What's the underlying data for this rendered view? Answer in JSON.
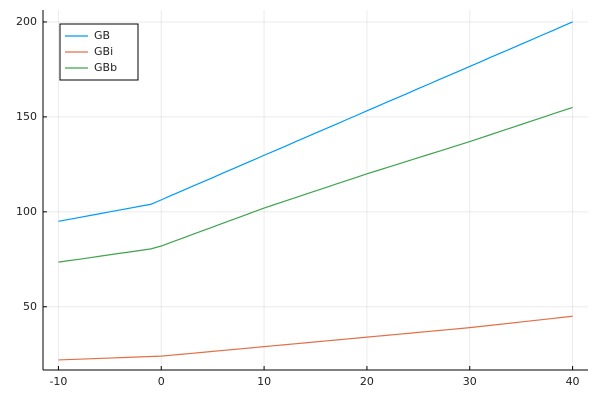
{
  "chart_data": {
    "type": "line",
    "x": [
      -10,
      -9,
      -8,
      -7,
      -6,
      -5,
      -4,
      -3,
      -2,
      -1,
      0,
      1,
      2,
      3,
      4,
      5,
      6,
      7,
      8,
      9,
      10,
      11,
      12,
      13,
      14,
      15,
      16,
      17,
      18,
      19,
      20,
      21,
      22,
      23,
      24,
      25,
      26,
      27,
      28,
      29,
      30,
      31,
      32,
      33,
      34,
      35,
      36,
      37,
      38,
      39,
      40
    ],
    "series": [
      {
        "name": "GB",
        "color": "#009af9",
        "values": [
          95,
          96,
          97,
          98,
          99,
          100,
          101,
          102,
          103,
          104,
          106.3,
          108.7,
          111.0,
          113.4,
          115.7,
          118.0,
          120.4,
          122.7,
          125.1,
          127.4,
          129.8,
          132.1,
          134.4,
          136.8,
          139.1,
          141.5,
          143.8,
          146.1,
          148.5,
          150.8,
          153.2,
          155.5,
          157.9,
          160.2,
          162.5,
          164.9,
          167.2,
          169.6,
          171.9,
          174.2,
          176.6,
          178.9,
          181.3,
          183.6,
          185.9,
          188.3,
          190.6,
          193.0,
          195.3,
          197.7,
          200
        ]
      },
      {
        "name": "GBi",
        "color": "#e26f46",
        "values": [
          22,
          22.2,
          22.4,
          22.6,
          22.8,
          23,
          23.2,
          23.4,
          23.6,
          23.8,
          24,
          24.5,
          25,
          25.5,
          26,
          26.5,
          27,
          27.5,
          28,
          28.5,
          29,
          29.5,
          30,
          30.5,
          31,
          31.5,
          32,
          32.5,
          33,
          33.5,
          34,
          34.5,
          35,
          35.5,
          36,
          36.5,
          37,
          37.5,
          38,
          38.5,
          39,
          39.6,
          40.2,
          40.8,
          41.4,
          42,
          42.6,
          43.2,
          43.8,
          44.4,
          45
        ]
      },
      {
        "name": "GBb",
        "color": "#3ea44e",
        "values": [
          73.5,
          74.3,
          75.0,
          75.8,
          76.6,
          77.4,
          78.2,
          78.9,
          79.7,
          80.5,
          82,
          84,
          86,
          88,
          90,
          92,
          94,
          96,
          98,
          100,
          102,
          103.8,
          105.6,
          107.4,
          109.2,
          111,
          112.8,
          114.6,
          116.4,
          118.2,
          120,
          121.7,
          123.4,
          125.1,
          126.8,
          128.5,
          130.2,
          131.9,
          133.6,
          135.3,
          137,
          138.8,
          140.6,
          142.4,
          144.2,
          146,
          147.8,
          149.6,
          151.4,
          153.2,
          155
        ]
      }
    ],
    "xlim": [
      -11.5,
      41.5
    ],
    "ylim": [
      16.7,
      206.3
    ],
    "xticks": [
      -10,
      0,
      10,
      20,
      30,
      40
    ],
    "yticks": [
      50,
      100,
      150,
      200
    ],
    "grid": true,
    "legend": "top-left"
  }
}
